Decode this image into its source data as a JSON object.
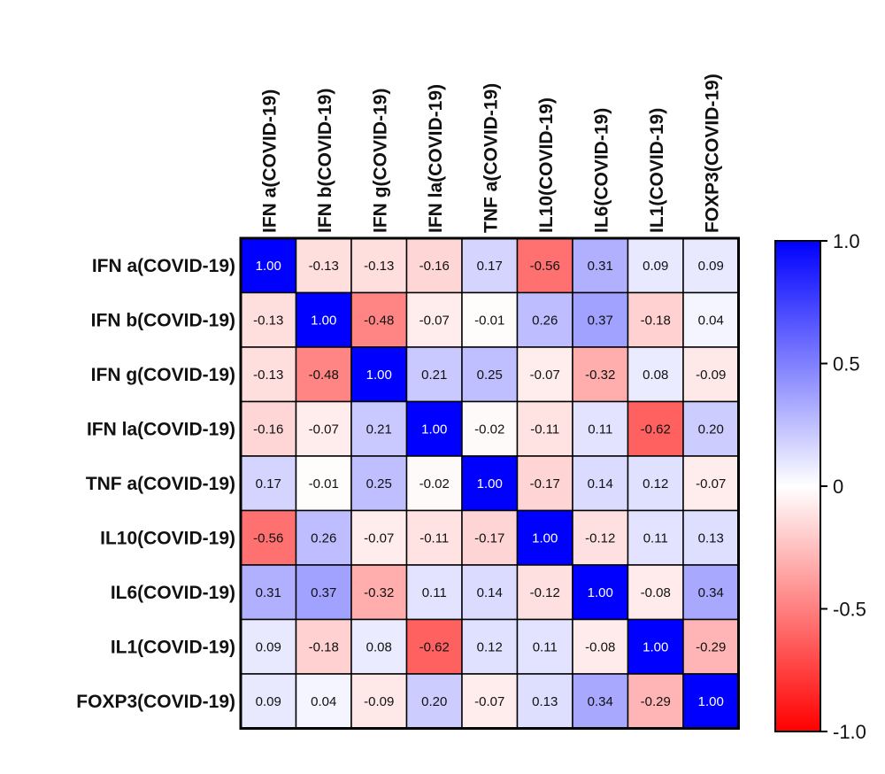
{
  "chart_data": {
    "type": "heatmap",
    "rows": [
      "IFN a(COVID-19)",
      "IFN b(COVID-19)",
      "IFN g(COVID-19)",
      "IFN la(COVID-19)",
      "TNF a(COVID-19)",
      "IL10(COVID-19)",
      "IL6(COVID-19)",
      "IL1(COVID-19)",
      "FOXP3(COVID-19)"
    ],
    "columns": [
      "IFN a(COVID-19)",
      "IFN b(COVID-19)",
      "IFN g(COVID-19)",
      "IFN la(COVID-19)",
      "TNF a(COVID-19)",
      "IL10(COVID-19)",
      "IL6(COVID-19)",
      "IL1(COVID-19)",
      "FOXP3(COVID-19)"
    ],
    "values": [
      [
        "1.00",
        "-0.13",
        "-0.13",
        "-0.16",
        "0.17",
        "-0.56",
        "0.31",
        "0.09",
        "0.09"
      ],
      [
        "-0.13",
        "1.00",
        "-0.48",
        "-0.07",
        "-0.01",
        "0.26",
        "0.37",
        "-0.18",
        "0.04"
      ],
      [
        "-0.13",
        "-0.48",
        "1.00",
        "0.21",
        "0.25",
        "-0.07",
        "-0.32",
        "0.08",
        "-0.09"
      ],
      [
        "-0.16",
        "-0.07",
        "0.21",
        "1.00",
        "-0.02",
        "-0.11",
        "0.11",
        "-0.62",
        "0.20"
      ],
      [
        "0.17",
        "-0.01",
        "0.25",
        "-0.02",
        "1.00",
        "-0.17",
        "0.14",
        "0.12",
        "-0.07"
      ],
      [
        "-0.56",
        "0.26",
        "-0.07",
        "-0.11",
        "-0.17",
        "1.00",
        "-0.12",
        "0.11",
        "0.13"
      ],
      [
        "0.31",
        "0.37",
        "-0.32",
        "0.11",
        "0.14",
        "-0.12",
        "1.00",
        "-0.08",
        "0.34"
      ],
      [
        "0.09",
        "-0.18",
        "0.08",
        "-0.62",
        "0.12",
        "0.11",
        "-0.08",
        "1.00",
        "-0.29"
      ],
      [
        "0.09",
        "0.04",
        "-0.09",
        "0.20",
        "-0.07",
        "0.13",
        "0.34",
        "-0.29",
        "1.00"
      ]
    ],
    "colorbar": {
      "range": [
        -1.0,
        1.0
      ],
      "ticks": [
        1.0,
        0.5,
        0,
        -0.5,
        -1.0
      ],
      "tick_labels": [
        "1.0",
        "0.5",
        "0",
        "-0.5",
        "-1.0"
      ],
      "colors": {
        "negative": "#ff0000",
        "zero": "#ffffff",
        "positive": "#0000ff"
      }
    }
  }
}
